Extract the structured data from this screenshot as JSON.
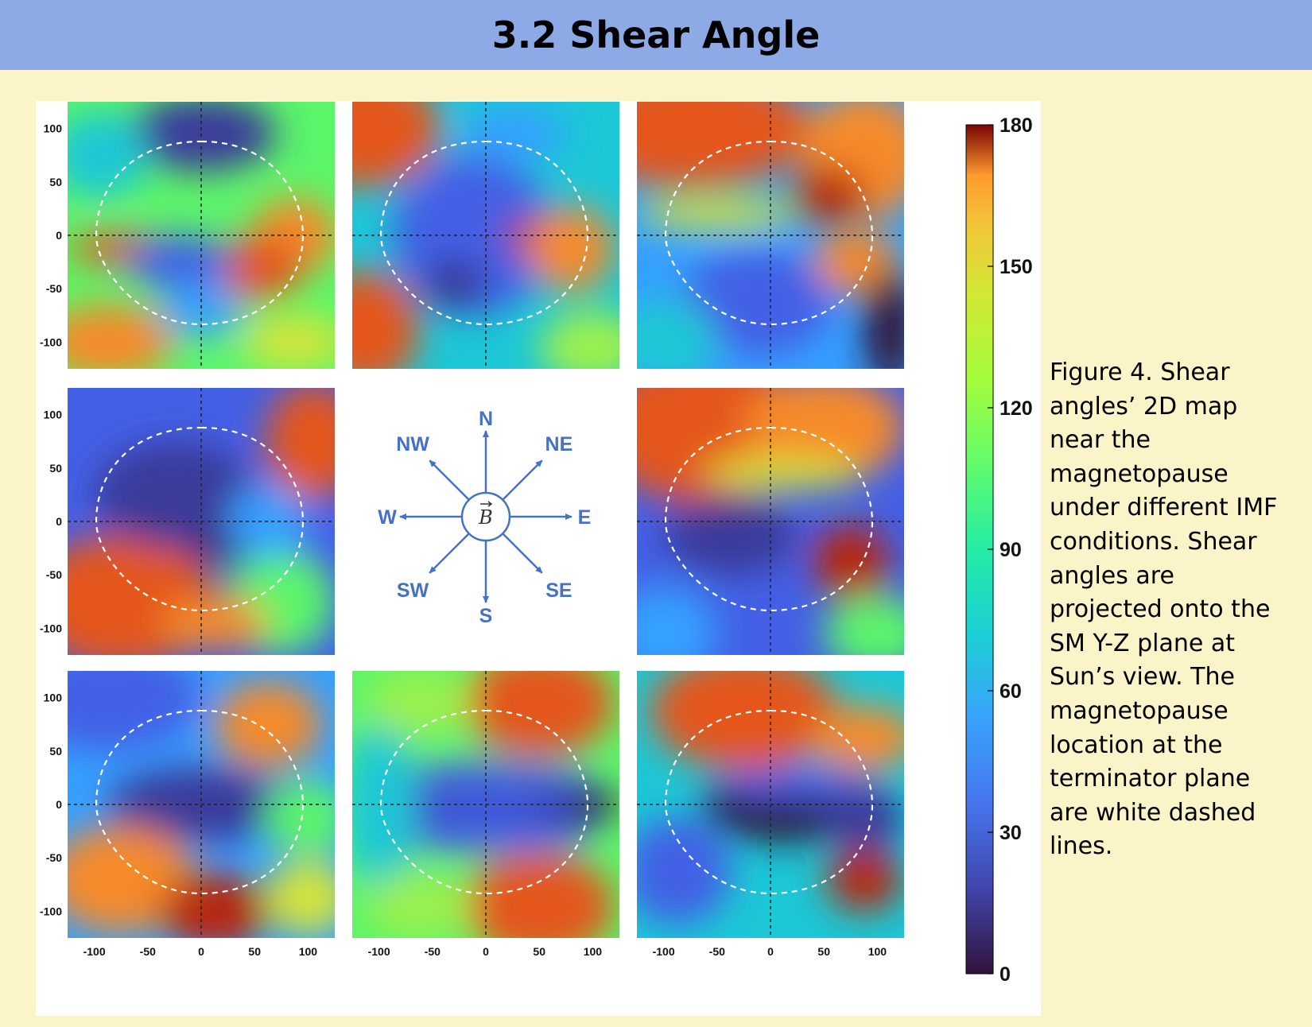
{
  "header": {
    "title": "3.2 Shear Angle"
  },
  "figure": {
    "caption": "Figure 4. Shear angles’ 2D map near the magnetopause under different IMF conditions. Shear angles are projected onto the SM Y-Z plane at Sun’s view. The magnetopause location at the terminator plane are white dashed lines.",
    "y_tick_labels": [
      "100",
      "50",
      "0",
      "-50",
      "-100"
    ],
    "x_tick_labels": [
      "-100",
      "-50",
      "0",
      "50",
      "100"
    ],
    "colorbar": {
      "ticks": [
        "180",
        "150",
        "120",
        "90",
        "60",
        "30",
        "0"
      ],
      "range": [
        0,
        180
      ],
      "colormap": "turbo"
    },
    "compass": {
      "center_label": "B",
      "directions": [
        "N",
        "NE",
        "E",
        "SE",
        "S",
        "SW",
        "W",
        "NW"
      ]
    },
    "panels": [
      {
        "imf": "NW"
      },
      {
        "imf": "N"
      },
      {
        "imf": "NE"
      },
      {
        "imf": "W"
      },
      {
        "imf": "E"
      },
      {
        "imf": "SW"
      },
      {
        "imf": "S"
      },
      {
        "imf": "SE"
      }
    ]
  }
}
